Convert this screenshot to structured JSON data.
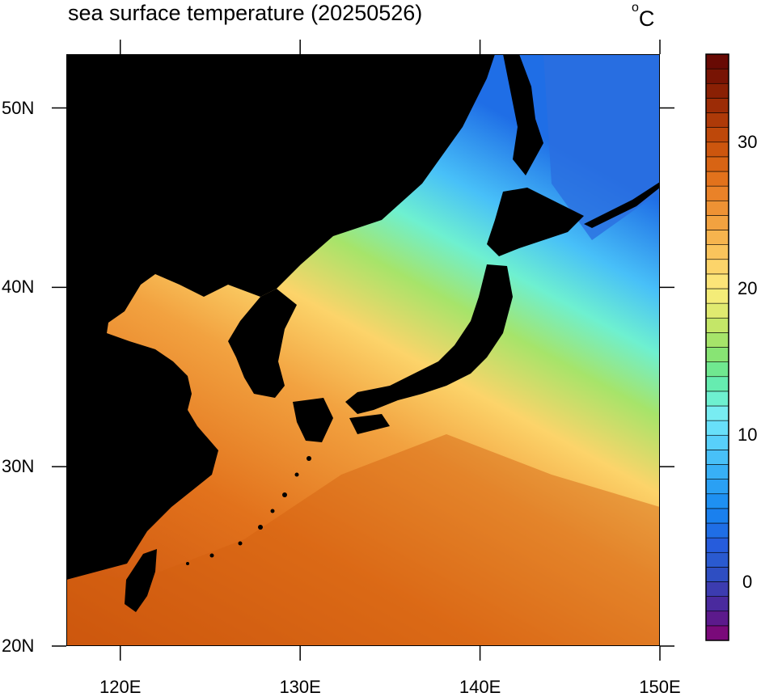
{
  "title": "sea surface temperature (20250526)",
  "unit": "C",
  "unit_degree": "o",
  "map": {
    "lat_labels": [
      "50N",
      "40N",
      "30N",
      "20N"
    ],
    "lon_labels": [
      "120E",
      "130E",
      "140E",
      "150E"
    ],
    "lat_values": [
      50,
      40,
      30,
      20
    ],
    "lon_values": [
      120,
      130,
      140,
      150
    ],
    "lon_range": [
      117,
      150
    ],
    "lat_range": [
      20,
      53
    ]
  },
  "colorbar": {
    "labels": [
      "30",
      "20",
      "10",
      "0"
    ],
    "label_values": [
      30,
      20,
      10,
      0
    ],
    "min": -4,
    "max": 36,
    "colors": [
      "#7a0a7a",
      "#5c1a8c",
      "#4a2a9e",
      "#3c3cb0",
      "#2e4ec2",
      "#2a5ad0",
      "#265cdc",
      "#1f6ee6",
      "#1a80ee",
      "#1e90f2",
      "#2aa0f4",
      "#38b0f6",
      "#48c0f8",
      "#58d0fa",
      "#68e0fa",
      "#78ecf2",
      "#6ef0d0",
      "#66ecb0",
      "#70e890",
      "#88e474",
      "#a6e46a",
      "#c4e668",
      "#e0ea70",
      "#f4ec78",
      "#fce478",
      "#fcd46a",
      "#fac45c",
      "#f6b44e",
      "#f2a240",
      "#ee9234",
      "#ea8228",
      "#e2721c",
      "#d86414",
      "#cc560e",
      "#be480a",
      "#ae3a08",
      "#9c2c06",
      "#8a2004",
      "#781404",
      "#680a04"
    ],
    "stops": [
      {
        "v": -4,
        "c": "#7a0a7a"
      },
      {
        "v": 0,
        "c": "#3c3cb0"
      },
      {
        "v": 4,
        "c": "#1f6ee6"
      },
      {
        "v": 8,
        "c": "#38b0f6"
      },
      {
        "v": 12,
        "c": "#78ecf2"
      },
      {
        "v": 14,
        "c": "#6ef0d0"
      },
      {
        "v": 17,
        "c": "#88e474"
      },
      {
        "v": 20,
        "c": "#e0ea70"
      },
      {
        "v": 23,
        "c": "#fcd46a"
      },
      {
        "v": 26,
        "c": "#f2a240"
      },
      {
        "v": 29,
        "c": "#e2721c"
      },
      {
        "v": 32,
        "c": "#cc560e"
      },
      {
        "v": 36,
        "c": "#680a04"
      }
    ]
  },
  "colors": {
    "land": "#000000",
    "frame": "#000000"
  }
}
